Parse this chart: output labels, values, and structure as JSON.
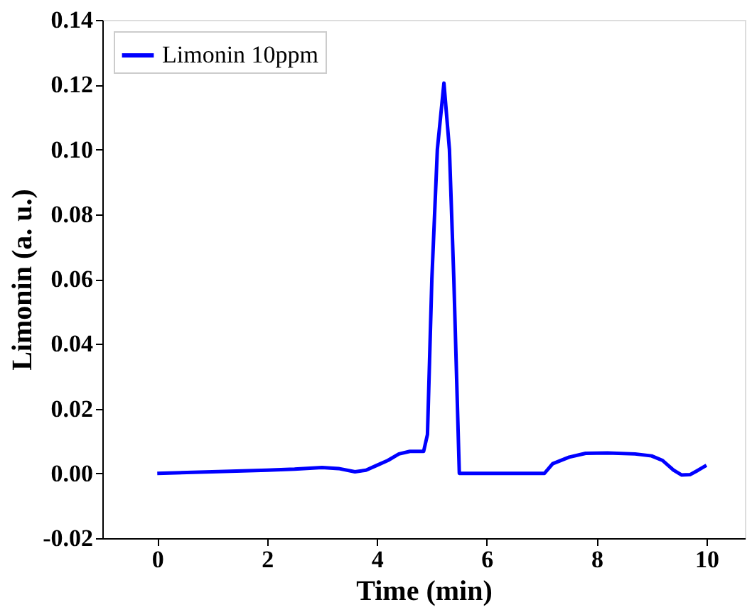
{
  "chart_data": {
    "type": "line",
    "xlabel": "Time (min)",
    "ylabel": "Limonin (a. u.)",
    "xlim": [
      -1,
      10.7
    ],
    "ylim": [
      -0.02,
      0.14
    ],
    "xticks": [
      0,
      2,
      4,
      6,
      8,
      10
    ],
    "yticks": [
      {
        "value": -0.02,
        "label": "-0.02"
      },
      {
        "value": 0,
        "label": "0.00"
      },
      {
        "value": 0.02,
        "label": "0.02"
      },
      {
        "value": 0.04,
        "label": "0.04"
      },
      {
        "value": 0.06,
        "label": "0.06"
      },
      {
        "value": 0.08,
        "label": "0.08"
      },
      {
        "value": 0.1,
        "label": "0.10"
      },
      {
        "value": 0.12,
        "label": "0.12"
      },
      {
        "value": 0.14,
        "label": "0.14"
      }
    ],
    "grid": false,
    "legend": "top left",
    "marker": "none",
    "line_style": "solid",
    "series": [
      {
        "name": "Limonin 10ppm",
        "color": "#0000ff",
        "x": [
          0,
          1,
          2,
          2.5,
          3,
          3.3,
          3.6,
          3.8,
          4,
          4.2,
          4.4,
          4.6,
          4.85,
          4.92,
          5.0,
          5.1,
          5.22,
          5.32,
          5.4,
          5.5,
          6,
          7,
          7.05,
          7.2,
          7.5,
          7.8,
          8.2,
          8.7,
          9.0,
          9.2,
          9.4,
          9.55,
          9.7,
          9.85,
          10
        ],
        "values": [
          0,
          0.0005,
          0.001,
          0.0013,
          0.0018,
          0.0015,
          0.0005,
          0.001,
          0.0025,
          0.004,
          0.006,
          0.0068,
          0.0068,
          0.012,
          0.06,
          0.1,
          0.1205,
          0.1,
          0.06,
          0,
          0,
          0,
          0,
          0.003,
          0.005,
          0.0062,
          0.0063,
          0.006,
          0.0054,
          0.004,
          0.001,
          -0.0005,
          -0.0004,
          0.001,
          0.0025
        ]
      }
    ]
  }
}
